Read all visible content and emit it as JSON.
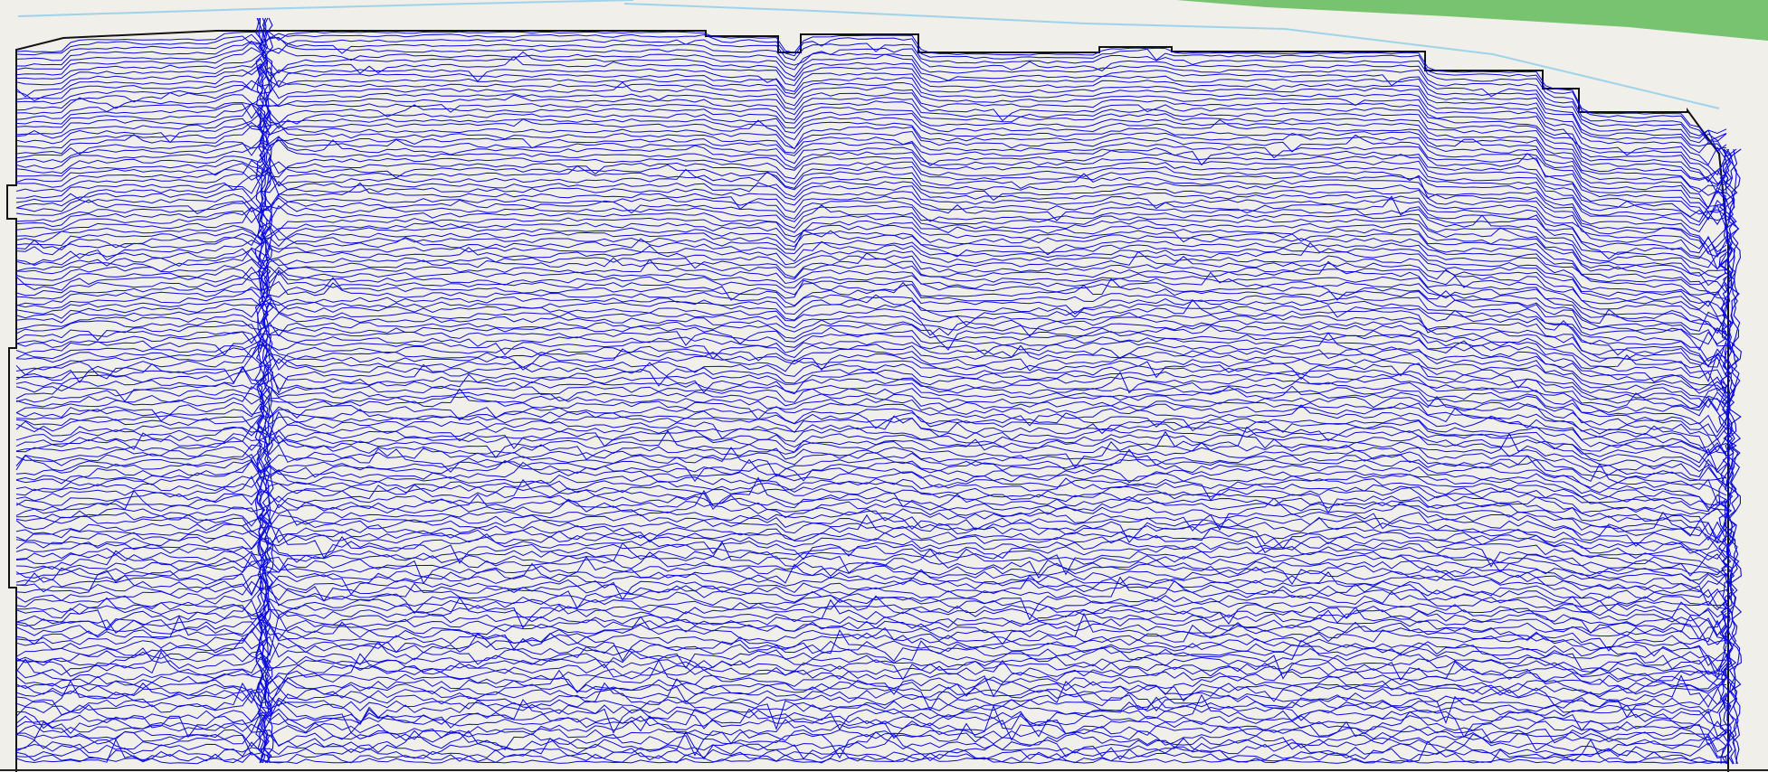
{
  "map": {
    "background_color": "#f0efe9",
    "vegetation_color": "#77c36f",
    "road_color": "#9fd3ea",
    "survey_boundary_color": "#111111",
    "trace_color": "#0a0adf",
    "trace_count": 148,
    "vertical_anomaly_count": 2,
    "has_visible_text": false
  }
}
